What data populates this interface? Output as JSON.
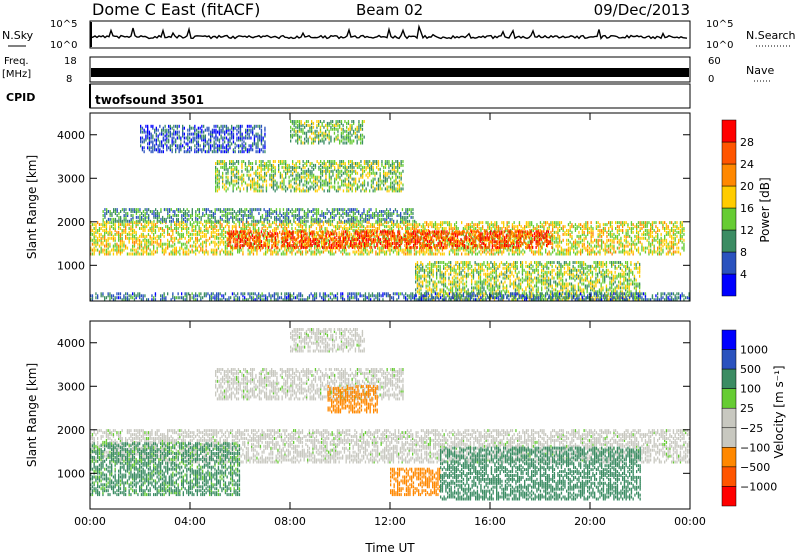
{
  "header": {
    "title": "Dome C East (fitACF)",
    "beam": "Beam 02",
    "date": "09/Dec/2013"
  },
  "nsky": {
    "label": "N.Sky",
    "right_label": "N.Search",
    "ticks_left": [
      "10^5",
      "10^0"
    ],
    "ticks_right": [
      "10^5",
      "10^0"
    ]
  },
  "freq": {
    "label_line1": "Freq.",
    "label_line2": "[MHz]",
    "right_label": "Nave",
    "ticks_left": [
      "18",
      "8"
    ],
    "ticks_right": [
      "60",
      "0"
    ]
  },
  "cpid": {
    "label": "CPID",
    "program": "twofsound 3501"
  },
  "colors": {
    "power": [
      "#0000ff",
      "#2a52be",
      "#3b8c63",
      "#66cc33",
      "#ffcc00",
      "#ff8800",
      "#ff5500",
      "#ff0000"
    ],
    "velocity": [
      "#ff0000",
      "#ff5500",
      "#ff8800",
      "#c8c8c0",
      "#c8c8c0",
      "#66cc33",
      "#3b8c63",
      "#2a52be",
      "#0000ff"
    ],
    "ground_scatter": "#a9a9a9"
  },
  "chart_data": [
    {
      "type": "heatmap",
      "name": "power-panel",
      "xlabel": "",
      "ylabel": "Slant Range [km]",
      "x_ticks": [
        "00:00",
        "04:00",
        "08:00",
        "12:00",
        "16:00",
        "20:00",
        "00:00"
      ],
      "xlim_hours": [
        0,
        24
      ],
      "y_ticks": [
        1000,
        2000,
        3000,
        4000
      ],
      "ylim": [
        180,
        4500
      ],
      "colorbar": {
        "label": "Power [dB]",
        "ticks": [
          4,
          8,
          12,
          16,
          20,
          24,
          28
        ],
        "range": [
          0,
          32
        ]
      },
      "bands": [
        {
          "t": [
            0,
            23.8
          ],
          "r": [
            1250,
            2000
          ],
          "v": 17
        },
        {
          "t": [
            5.5,
            18.5
          ],
          "r": [
            1400,
            1800
          ],
          "v": 27
        },
        {
          "t": [
            0.5,
            13
          ],
          "r": [
            2000,
            2300
          ],
          "v": 10
        },
        {
          "t": [
            5,
            12.5
          ],
          "r": [
            2700,
            3400
          ],
          "v": 14
        },
        {
          "t": [
            8,
            11
          ],
          "r": [
            3800,
            4300
          ],
          "v": 13
        },
        {
          "t": [
            2,
            7
          ],
          "r": [
            3600,
            4200
          ],
          "v": 6
        },
        {
          "t": [
            13,
            22
          ],
          "r": [
            200,
            1100
          ],
          "v": 15
        },
        {
          "t": [
            0,
            24
          ],
          "r": [
            200,
            350
          ],
          "v": 8
        }
      ]
    },
    {
      "type": "heatmap",
      "name": "velocity-panel",
      "xlabel": "Time UT",
      "ylabel": "Slant Range [km]",
      "x_ticks": [
        "00:00",
        "04:00",
        "08:00",
        "12:00",
        "16:00",
        "20:00",
        "00:00"
      ],
      "xlim_hours": [
        0,
        24
      ],
      "y_ticks": [
        1000,
        2000,
        3000,
        4000
      ],
      "ylim": [
        180,
        4500
      ],
      "colorbar": {
        "label": "Velocity [m s⁻¹]",
        "ticks": [
          "1000",
          "500",
          "100",
          "25",
          "−25",
          "−100",
          "−500",
          "−1000"
        ]
      },
      "bands": [
        {
          "t": [
            0,
            24
          ],
          "r": [
            1250,
            2000
          ],
          "v": 0
        },
        {
          "t": [
            5,
            12.5
          ],
          "r": [
            2700,
            3400
          ],
          "v": 0
        },
        {
          "t": [
            8,
            11
          ],
          "r": [
            3800,
            4300
          ],
          "v": 0
        },
        {
          "t": [
            12,
            14
          ],
          "r": [
            500,
            1100
          ],
          "v": -300
        },
        {
          "t": [
            14,
            22
          ],
          "r": [
            400,
            1600
          ],
          "v": 200
        },
        {
          "t": [
            0,
            6
          ],
          "r": [
            500,
            1700
          ],
          "v": 120
        },
        {
          "t": [
            9.5,
            11.5
          ],
          "r": [
            2400,
            3000
          ],
          "v": -150
        }
      ]
    }
  ]
}
